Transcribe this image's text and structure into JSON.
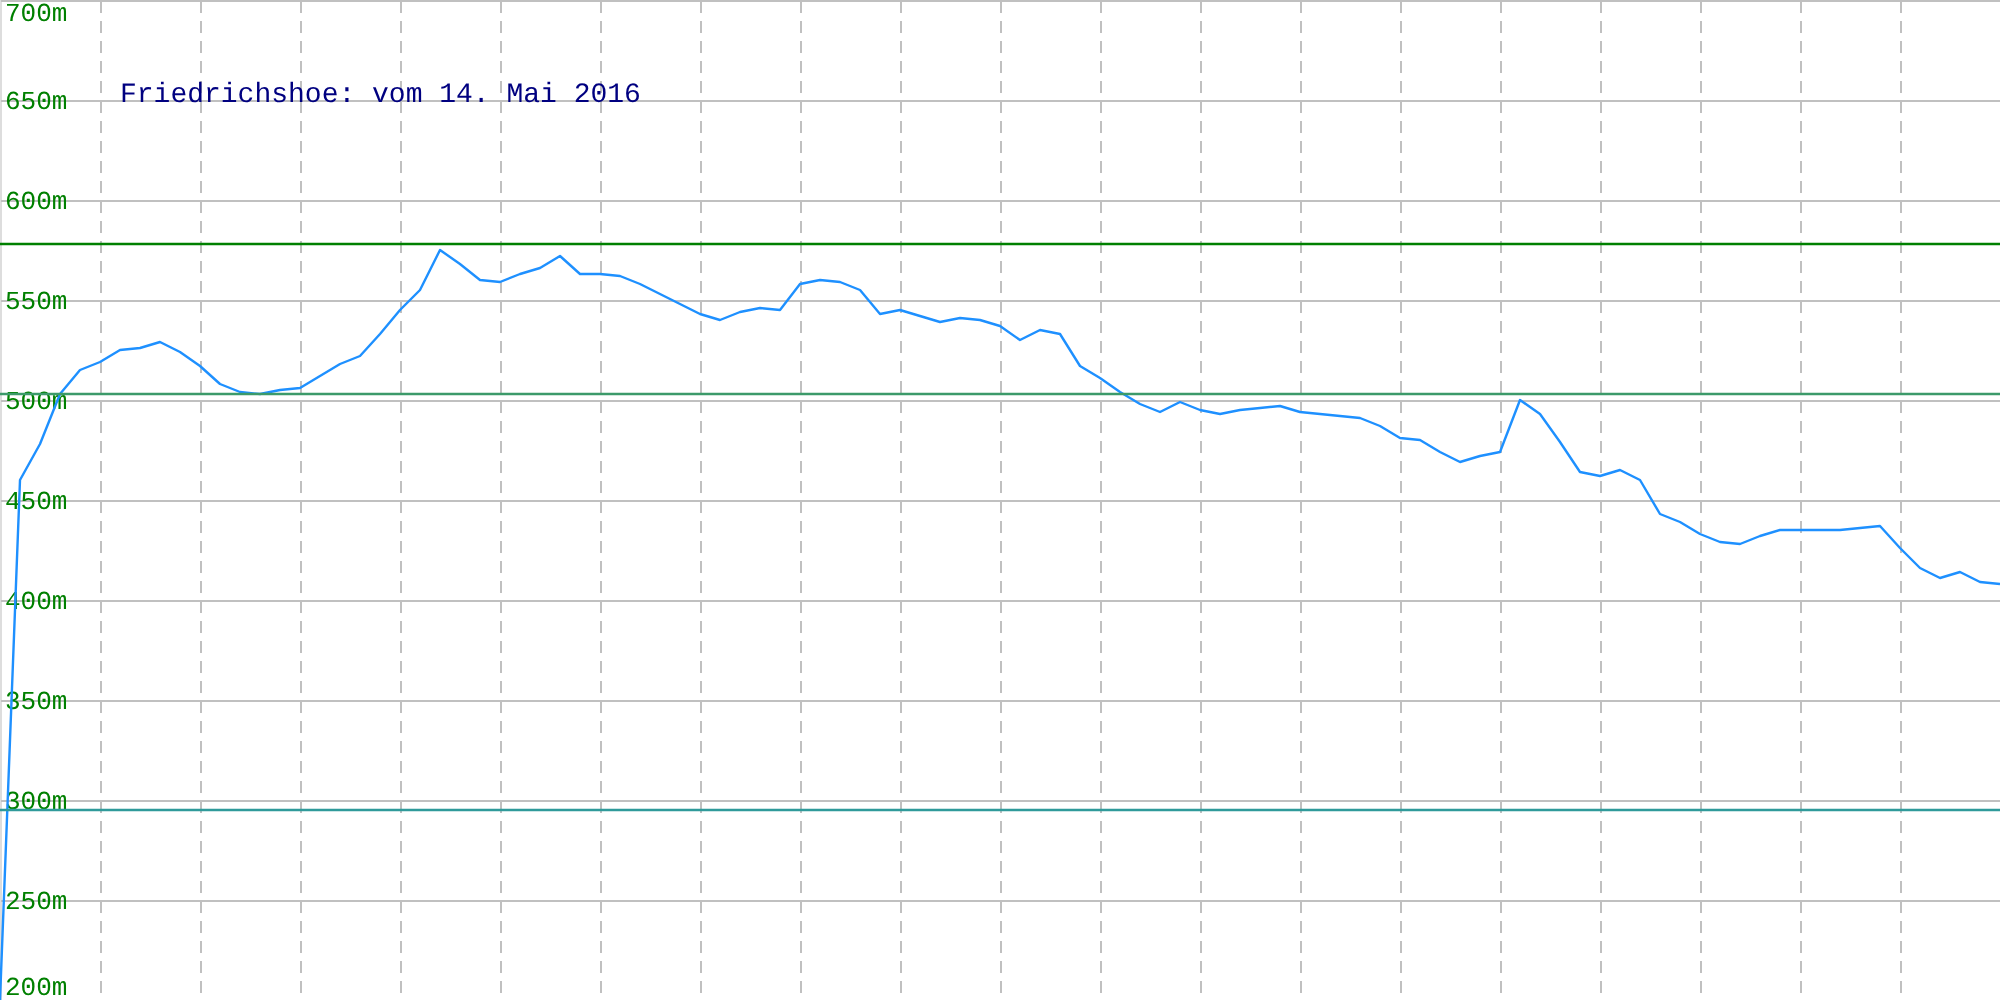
{
  "chart_data": {
    "type": "line",
    "title": "Friedrichshoe: vom 14. Mai 2016",
    "categories": [
      null,
      null,
      null,
      null,
      null,
      null,
      null,
      null,
      null,
      null,
      null,
      null,
      null,
      null,
      null,
      null,
      null,
      null,
      null,
      null,
      null,
      null,
      null,
      null,
      null,
      null,
      null,
      null,
      null,
      null,
      null,
      null,
      null,
      null,
      null,
      null,
      null,
      null,
      null,
      null,
      null,
      null,
      null,
      null,
      null,
      null,
      null,
      null,
      null,
      null,
      null,
      null,
      null,
      null,
      null,
      null,
      null,
      null,
      null,
      null,
      null,
      null,
      null,
      null,
      null,
      null,
      null,
      null,
      null,
      null,
      null,
      null,
      null,
      null,
      null,
      null,
      null,
      null,
      null,
      null,
      null,
      null,
      null,
      null,
      null,
      null,
      null,
      null,
      null,
      null,
      null,
      null,
      null,
      null,
      null,
      null,
      null,
      null,
      null,
      null,
      null
    ],
    "series": [
      {
        "color": "#1e90ff",
        "values": [
          200,
          460,
          478,
          503,
          515,
          519,
          525,
          526,
          529,
          524,
          517,
          508,
          504,
          503,
          505,
          506,
          512,
          518,
          522,
          533,
          545,
          555,
          575,
          568,
          560,
          559,
          563,
          566,
          572,
          563,
          563,
          562,
          558,
          553,
          548,
          543,
          540,
          544,
          546,
          545,
          558,
          560,
          559,
          555,
          543,
          545,
          542,
          539,
          541,
          540,
          537,
          530,
          535,
          533,
          517,
          511,
          504,
          498,
          494,
          499,
          495,
          493,
          495,
          496,
          497,
          494,
          493,
          492,
          491,
          487,
          481,
          480,
          474,
          469,
          472,
          474,
          500,
          493,
          479,
          464,
          462,
          465,
          460,
          443,
          439,
          433,
          429,
          428,
          432,
          435,
          435,
          435,
          435,
          436,
          437,
          426,
          416,
          411,
          414,
          409,
          408
        ]
      }
    ],
    "ylim": [
      200,
      700
    ],
    "yticks": [
      {
        "value": 200,
        "label": "200m"
      },
      {
        "value": 250,
        "label": "250m"
      },
      {
        "value": 300,
        "label": "300m"
      },
      {
        "value": 350,
        "label": "350m"
      },
      {
        "value": 400,
        "label": "400m"
      },
      {
        "value": 450,
        "label": "450m"
      },
      {
        "value": 500,
        "label": "500m"
      },
      {
        "value": 550,
        "label": "550m"
      },
      {
        "value": 600,
        "label": "600m"
      },
      {
        "value": 650,
        "label": "650m"
      },
      {
        "value": 700,
        "label": "700m"
      }
    ],
    "tick_labels": "y",
    "grid": true,
    "ref_lines": [
      {
        "axis": "y",
        "value": 578,
        "color": "#008000"
      },
      {
        "axis": "y",
        "value": 503,
        "color": "#3c9a6a"
      },
      {
        "axis": "y",
        "value": 295,
        "color": "#2f9a9a"
      }
    ]
  }
}
